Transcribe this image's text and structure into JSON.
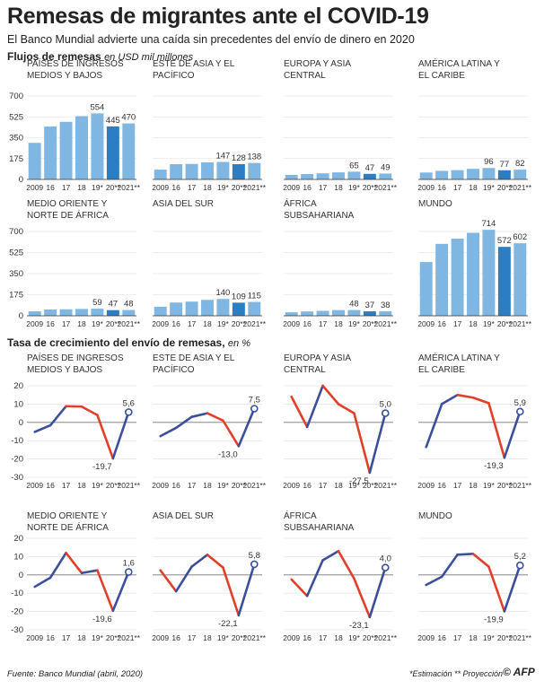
{
  "title": "Remesas de migrantes ante el COVID-19",
  "subtitle": "El Banco Mundial advierte una caída sin precedentes del envío de dinero en 2020",
  "section1": {
    "label": "Flujos de remesas",
    "unit": "en USD mil millones"
  },
  "section2": {
    "label": "Tasa de crecimiento del envío de remesas,",
    "unit": "en %"
  },
  "footer": {
    "source": "Fuente: Banco Mundial (abril, 2020)",
    "notes": "*Estimación ** Proyección",
    "logo": "© AFP"
  },
  "colors": {
    "bar": "#7fb7e2",
    "bar_projection": "#2b7ec3",
    "line_up": "#3b4f9a",
    "line_down": "#e0402a"
  },
  "chart_data": [
    {
      "type": "bar",
      "title": "Flujos de remesas",
      "categories": [
        "2009",
        "16",
        "17",
        "18",
        "19*",
        "20**",
        "2021**"
      ],
      "ylim": [
        0,
        700
      ],
      "yticks": [
        0,
        175,
        350,
        525,
        700
      ],
      "panels": [
        {
          "name": "PAÍSES DE INGRESOS MEDIOS Y BAJOS",
          "values": [
            307,
            444,
            483,
            531,
            554,
            445,
            470
          ],
          "labels": [
            null,
            null,
            null,
            null,
            "554",
            "445",
            "470"
          ]
        },
        {
          "name": "ESTE DE ASIA Y EL PACÍFICO",
          "values": [
            82,
            128,
            130,
            143,
            147,
            128,
            138
          ],
          "labels": [
            null,
            null,
            null,
            null,
            "147",
            "128",
            "138"
          ]
        },
        {
          "name": "EUROPA Y ASIA CENTRAL",
          "values": [
            38,
            45,
            51,
            59,
            65,
            47,
            49
          ],
          "labels": [
            null,
            null,
            null,
            null,
            "65",
            "47",
            "49"
          ]
        },
        {
          "name": "AMÉRICA LATINA Y EL CARIBE",
          "values": [
            58,
            72,
            78,
            89,
            96,
            77,
            82
          ],
          "labels": [
            null,
            null,
            null,
            null,
            "96",
            "77",
            "82"
          ]
        },
        {
          "name": "MEDIO ORIENTE Y NORTE DE ÁFRICA",
          "values": [
            37,
            52,
            54,
            57,
            59,
            47,
            48
          ],
          "labels": [
            null,
            null,
            null,
            null,
            "59",
            "47",
            "48"
          ]
        },
        {
          "name": "ASIA DEL SUR",
          "values": [
            75,
            110,
            118,
            132,
            140,
            109,
            115
          ],
          "labels": [
            null,
            null,
            null,
            null,
            "140",
            "109",
            "115"
          ]
        },
        {
          "name": "ÁFRICA SUBSAHARIANA",
          "values": [
            29,
            36,
            41,
            47,
            48,
            37,
            38
          ],
          "labels": [
            null,
            null,
            null,
            null,
            "48",
            "37",
            "38"
          ]
        },
        {
          "name": "MUNDO",
          "values": [
            446,
            597,
            640,
            689,
            714,
            572,
            602
          ],
          "labels": [
            null,
            null,
            null,
            null,
            "714",
            "572",
            "602"
          ]
        }
      ]
    },
    {
      "type": "line",
      "title": "Tasa de crecimiento del envío de remesas",
      "categories": [
        "2009",
        "16",
        "17",
        "18",
        "19*",
        "20**",
        "2021**"
      ],
      "ylim": [
        -30,
        20
      ],
      "yticks": [
        -30,
        -20,
        -10,
        0,
        10,
        20
      ],
      "panels": [
        {
          "name": "PAÍSES DE INGRESOS MEDIOS Y BAJOS",
          "values": [
            -5.2,
            -1.6,
            8.8,
            8.6,
            4.0,
            -19.7,
            5.6
          ],
          "labels": {
            "5": "-19,7",
            "6": "5,6"
          }
        },
        {
          "name": "ESTE DE ASIA Y EL PACÍFICO",
          "values": [
            -7.5,
            -3.0,
            3.0,
            5.0,
            1.0,
            -13.0,
            7.5
          ],
          "labels": {
            "5": "-13,0",
            "6": "7,5"
          }
        },
        {
          "name": "EUROPA Y ASIA CENTRAL",
          "values": [
            14.0,
            -2.5,
            20.0,
            10.0,
            5.0,
            -27.5,
            5.0
          ],
          "labels": {
            "5": "-27,5",
            "6": "5,0"
          }
        },
        {
          "name": "AMÉRICA LATINA Y EL CARIBE",
          "values": [
            -13.5,
            10.0,
            15.0,
            13.5,
            10.5,
            -19.3,
            5.9
          ],
          "labels": {
            "5": "-19,3",
            "6": "5,9"
          }
        },
        {
          "name": "MEDIO ORIENTE Y NORTE DE ÁFRICA",
          "values": [
            -6.5,
            -1.5,
            12.0,
            1.0,
            2.5,
            -19.6,
            1.6
          ],
          "labels": {
            "5": "-19,6",
            "6": "1,6"
          }
        },
        {
          "name": "ASIA DEL SUR",
          "values": [
            2.5,
            -9.0,
            4.5,
            11.0,
            4.0,
            -22.1,
            5.8
          ],
          "labels": {
            "5": "-22,1",
            "6": "5,8"
          }
        },
        {
          "name": "ÁFRICA SUBSAHARIANA",
          "values": [
            -2.5,
            -11.5,
            8.0,
            13.0,
            -2.0,
            -23.1,
            4.0
          ],
          "labels": {
            "5": "-23,1",
            "6": "4,0"
          }
        },
        {
          "name": "MUNDO",
          "values": [
            -5.5,
            -1.0,
            11.0,
            11.5,
            4.5,
            -19.9,
            5.2
          ],
          "labels": {
            "5": "-19,9",
            "6": "5,2"
          }
        }
      ]
    }
  ]
}
